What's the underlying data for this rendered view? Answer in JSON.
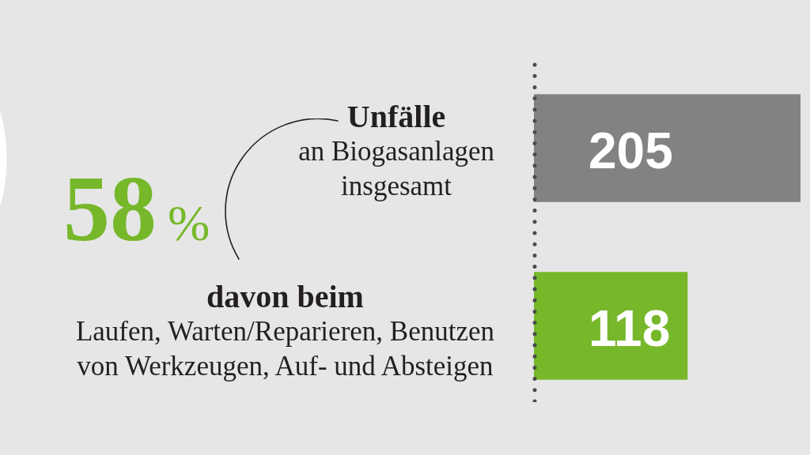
{
  "chart_data": {
    "type": "bar",
    "orientation": "horizontal",
    "categories": [
      "Unfälle\nan Biogasanlagen\ninsgesamt",
      "davon beim\nLaufen, Warten/Reparieren, Benutzen\nvon Werkzeugen, Auf- und Absteigen"
    ],
    "values": [
      205,
      118
    ],
    "colors": [
      "#838182",
      "#76b82a"
    ],
    "data_labels": true,
    "tick_labels": "y",
    "annotations": [
      "58%"
    ]
  }
}
